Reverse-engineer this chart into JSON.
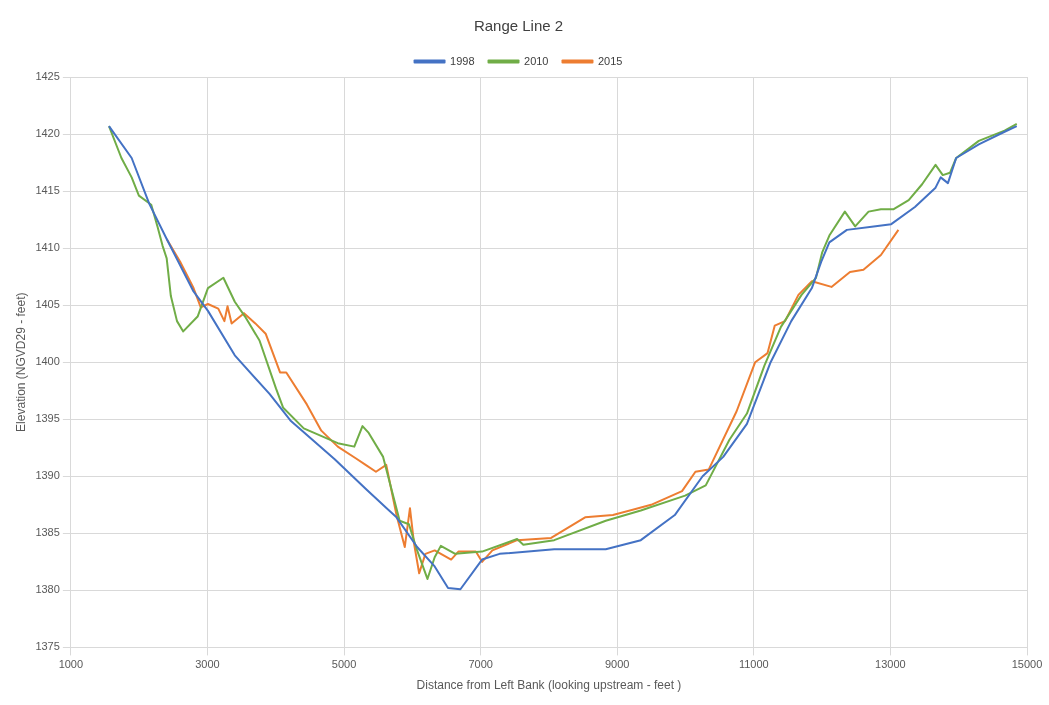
{
  "chart_data": {
    "type": "line",
    "title": "Range Line 2",
    "xlabel": "Distance from Left Bank (looking upstream - feet )",
    "ylabel": "Elevation (NGVD29 - feet)",
    "xlim": [
      1000,
      15000
    ],
    "xticks": [
      1000,
      3000,
      5000,
      7000,
      9000,
      11000,
      13000,
      15000
    ],
    "ylim": [
      1375,
      1425
    ],
    "yticks": [
      1375,
      1380,
      1385,
      1390,
      1395,
      1400,
      1405,
      1410,
      1415,
      1420,
      1425
    ],
    "grid": true,
    "legend": "top",
    "marker": "none",
    "line_style": "solid",
    "series": [
      {
        "name": "1998",
        "color": "#4472c4",
        "x": [
          1558,
          1890,
          2147,
          2403,
          2796,
          3007,
          3400,
          3912,
          4214,
          4863,
          5316,
          5768,
          6070,
          6327,
          6523,
          6704,
          7021,
          7277,
          8077,
          8832,
          9345,
          9843,
          10250,
          10552,
          10899,
          11246,
          11548,
          11850,
          11986,
          12106,
          12363,
          12755,
          13012,
          13359,
          13661,
          13736,
          13842,
          13963,
          14294,
          14672,
          14850
        ],
        "values": [
          1420.7,
          1417.9,
          1413.9,
          1410.8,
          1406.2,
          1404.5,
          1400.6,
          1397.2,
          1394.9,
          1391.5,
          1388.9,
          1386.4,
          1383.8,
          1382.1,
          1380.2,
          1380.1,
          1382.7,
          1383.2,
          1383.6,
          1383.6,
          1384.4,
          1386.6,
          1390.0,
          1391.7,
          1394.6,
          1400.0,
          1403.6,
          1406.5,
          1408.8,
          1410.5,
          1411.6,
          1411.9,
          1412.1,
          1413.6,
          1415.3,
          1416.2,
          1415.7,
          1417.9,
          1419.1,
          1420.2,
          1420.7
        ]
      },
      {
        "name": "2010",
        "color": "#70ad47",
        "x": [
          1558,
          1740,
          1890,
          1996,
          2177,
          2268,
          2343,
          2403,
          2464,
          2554,
          2645,
          2856,
          3007,
          3233,
          3400,
          3550,
          3762,
          4003,
          4109,
          4410,
          4908,
          5150,
          5270,
          5361,
          5572,
          5814,
          5950,
          6070,
          6221,
          6327,
          6417,
          6628,
          7021,
          7534,
          7625,
          8077,
          8832,
          9345,
          9994,
          10296,
          10643,
          10899,
          11155,
          11397,
          11699,
          11910,
          12000,
          12106,
          12333,
          12484,
          12680,
          12861,
          13042,
          13268,
          13464,
          13661,
          13767,
          13872,
          13963,
          14294,
          14672,
          14850
        ],
        "values": [
          1420.7,
          1417.9,
          1416.2,
          1414.6,
          1413.8,
          1411.9,
          1410.2,
          1409.1,
          1405.8,
          1403.6,
          1402.7,
          1404.0,
          1406.5,
          1407.4,
          1405.3,
          1404.0,
          1401.9,
          1397.7,
          1396.0,
          1394.2,
          1392.9,
          1392.6,
          1394.4,
          1393.8,
          1391.7,
          1386.1,
          1385.8,
          1383.5,
          1381.0,
          1382.9,
          1383.9,
          1383.2,
          1383.4,
          1384.5,
          1384.0,
          1384.4,
          1386.1,
          1387.0,
          1388.3,
          1389.2,
          1393.2,
          1395.5,
          1399.7,
          1403.1,
          1405.9,
          1407.4,
          1409.6,
          1411.1,
          1413.2,
          1411.9,
          1413.2,
          1413.4,
          1413.4,
          1414.2,
          1415.6,
          1417.3,
          1416.4,
          1416.6,
          1417.9,
          1419.4,
          1420.3,
          1420.9
        ]
      },
      {
        "name": "2015",
        "color": "#ed7d31",
        "x": [
          2403,
          2600,
          2796,
          2902,
          3007,
          3158,
          3248,
          3294,
          3354,
          3535,
          3701,
          3852,
          4063,
          4154,
          4455,
          4667,
          4908,
          5165,
          5316,
          5467,
          5618,
          5768,
          5889,
          5965,
          6025,
          6100,
          6191,
          6327,
          6568,
          6674,
          6930,
          7021,
          7172,
          7534,
          8032,
          8530,
          8937,
          9496,
          9949,
          10145,
          10341,
          10748,
          11020,
          11201,
          11306,
          11457,
          11653,
          11850,
          12137,
          12408,
          12605,
          12861,
          13117
        ],
        "values": [
          1410.8,
          1408.8,
          1406.5,
          1404.8,
          1405.1,
          1404.7,
          1403.6,
          1404.9,
          1403.4,
          1404.3,
          1403.4,
          1402.5,
          1399.1,
          1399.1,
          1396.3,
          1394.0,
          1392.6,
          1391.6,
          1391.0,
          1390.4,
          1391.0,
          1386.6,
          1383.8,
          1387.2,
          1384.1,
          1381.5,
          1383.2,
          1383.5,
          1382.7,
          1383.4,
          1383.4,
          1382.5,
          1383.5,
          1384.4,
          1384.6,
          1386.4,
          1386.6,
          1387.5,
          1388.7,
          1390.4,
          1390.6,
          1395.7,
          1400.0,
          1400.8,
          1403.2,
          1403.6,
          1405.9,
          1407.1,
          1406.6,
          1407.9,
          1408.1,
          1409.4,
          1411.6
        ]
      }
    ]
  }
}
